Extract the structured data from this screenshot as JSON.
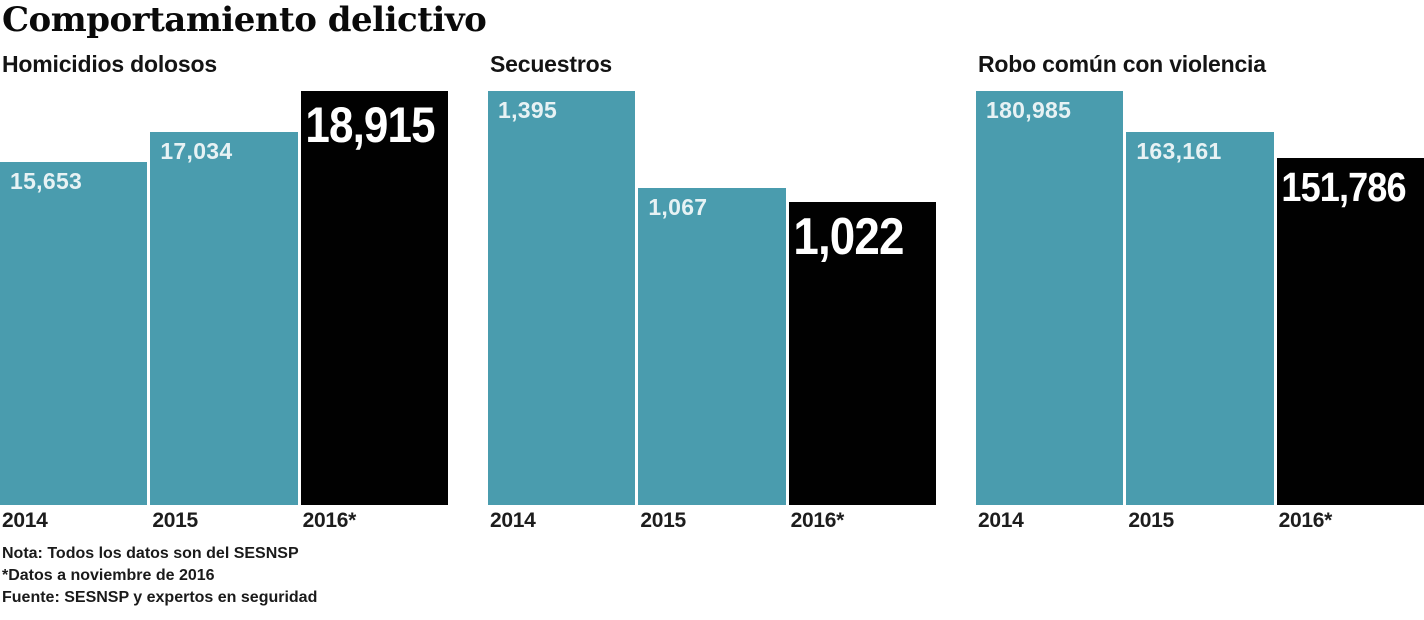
{
  "title": "Comportamiento delictivo",
  "colors": {
    "bar_teal": "#4a9cae",
    "bar_highlight": "#010101",
    "label_on_bar": "#ffffff",
    "text": "#1a1a1a",
    "background": "#ffffff"
  },
  "chart_data": [
    {
      "type": "bar",
      "title": "Homicidios dolosos",
      "categories": [
        "2014",
        "2015",
        "2016*"
      ],
      "values": [
        15653,
        17034,
        18915
      ],
      "value_labels": [
        "15,653",
        "17,034",
        "18,915"
      ],
      "highlight_index": 2,
      "ylim": [
        0,
        18915
      ],
      "grid": false,
      "legend": "none"
    },
    {
      "type": "bar",
      "title": "Secuestros",
      "categories": [
        "2014",
        "2015",
        "2016*"
      ],
      "values": [
        1395,
        1067,
        1022
      ],
      "value_labels": [
        "1,395",
        "1,067",
        "1,022"
      ],
      "highlight_index": 2,
      "ylim": [
        0,
        1395
      ],
      "grid": false,
      "legend": "none"
    },
    {
      "type": "bar",
      "title": "Robo común con violencia",
      "categories": [
        "2014",
        "2015",
        "2016*"
      ],
      "values": [
        180985,
        163161,
        151786
      ],
      "value_labels": [
        "180,985",
        "163,161",
        "151,786"
      ],
      "highlight_index": 2,
      "ylim": [
        0,
        180985
      ],
      "grid": false,
      "legend": "none"
    }
  ],
  "notes": [
    "Nota: Todos los datos son del SESNSP",
    "*Datos a noviembre de 2016",
    "Fuente: SESNSP y expertos en seguridad"
  ]
}
